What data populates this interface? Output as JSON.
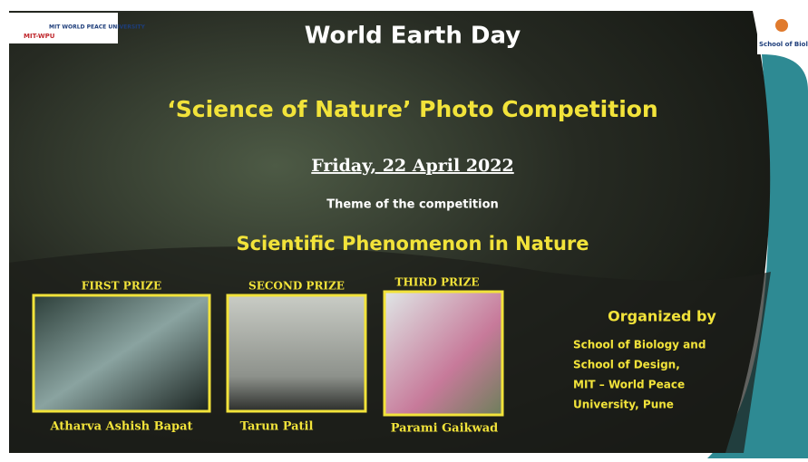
{
  "logo": {
    "short": "MIT-WPU",
    "name": "MIT WORLD PEACE UNIVERSITY",
    "school": "School of Biolo"
  },
  "header": {
    "title": "World Earth Day",
    "competition": "‘Science of Nature’ Photo Competition",
    "date": "Friday, 22 April 2022",
    "theme_label": "Theme of the competition",
    "theme": "Scientific Phenomenon in Nature"
  },
  "prizes": [
    {
      "label": "FIRST PRIZE",
      "winner": "Atharva Ashish Bapat"
    },
    {
      "label": "SECOND PRIZE",
      "winner": "Tarun Patil"
    },
    {
      "label": "THIRD PRIZE",
      "winner": "Parami Gaikwad"
    }
  ],
  "organizer": {
    "heading": "Organized by",
    "lines": [
      "School of Biology and",
      "School of Design,",
      "MIT – World Peace",
      "University, Pune"
    ]
  }
}
